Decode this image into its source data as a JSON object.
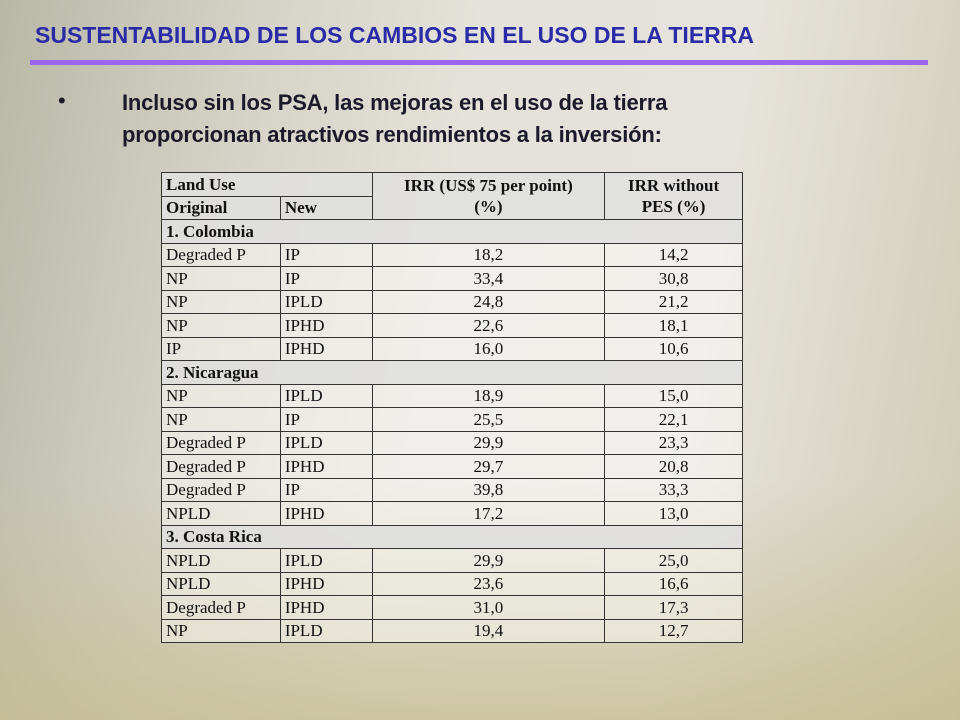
{
  "title": "SUSTENTABILIDAD DE LOS CAMBIOS EN EL USO DE LA TIERRA",
  "bullet": {
    "lines": [
      "Incluso sin los PSA, las mejoras en el uso de la tierra",
      "proporcionan atractivos rendimientos a la inversión:"
    ]
  },
  "table": {
    "header": {
      "land_use": "Land Use",
      "original": "Original",
      "new": "New",
      "irr_pes": [
        "IRR  (US$ 75 per point)",
        "(%)"
      ],
      "irr_no_pes": [
        "IRR without",
        "PES (%)"
      ]
    },
    "sections": [
      {
        "name": "1. Colombia",
        "rows": [
          [
            "Degraded P",
            "IP",
            "18,2",
            "14,2"
          ],
          [
            "NP",
            "IP",
            "33,4",
            "30,8"
          ],
          [
            "NP",
            "IPLD",
            "24,8",
            "21,2"
          ],
          [
            "NP",
            "IPHD",
            "22,6",
            "18,1"
          ],
          [
            "IP",
            "IPHD",
            "16,0",
            "10,6"
          ]
        ]
      },
      {
        "name": "2. Nicaragua",
        "rows": [
          [
            "NP",
            "IPLD",
            "18,9",
            "15,0"
          ],
          [
            "NP",
            "IP",
            "25,5",
            "22,1"
          ],
          [
            "Degraded P",
            "IPLD",
            "29,9",
            "23,3"
          ],
          [
            "Degraded P",
            "IPHD",
            "29,7",
            "20,8"
          ],
          [
            "Degraded P",
            "IP",
            "39,8",
            "33,3"
          ],
          [
            "NPLD",
            "IPHD",
            "17,2",
            "13,0"
          ]
        ]
      },
      {
        "name": "3. Costa Rica",
        "rows": [
          [
            "NPLD",
            "IPLD",
            "29,9",
            "25,0"
          ],
          [
            "NPLD",
            "IPHD",
            "23,6",
            "16,6"
          ],
          [
            "Degraded P",
            "IPHD",
            "31,0",
            "17,3"
          ],
          [
            "NP",
            "IPLD",
            "19,4",
            "12,7"
          ]
        ]
      }
    ]
  }
}
